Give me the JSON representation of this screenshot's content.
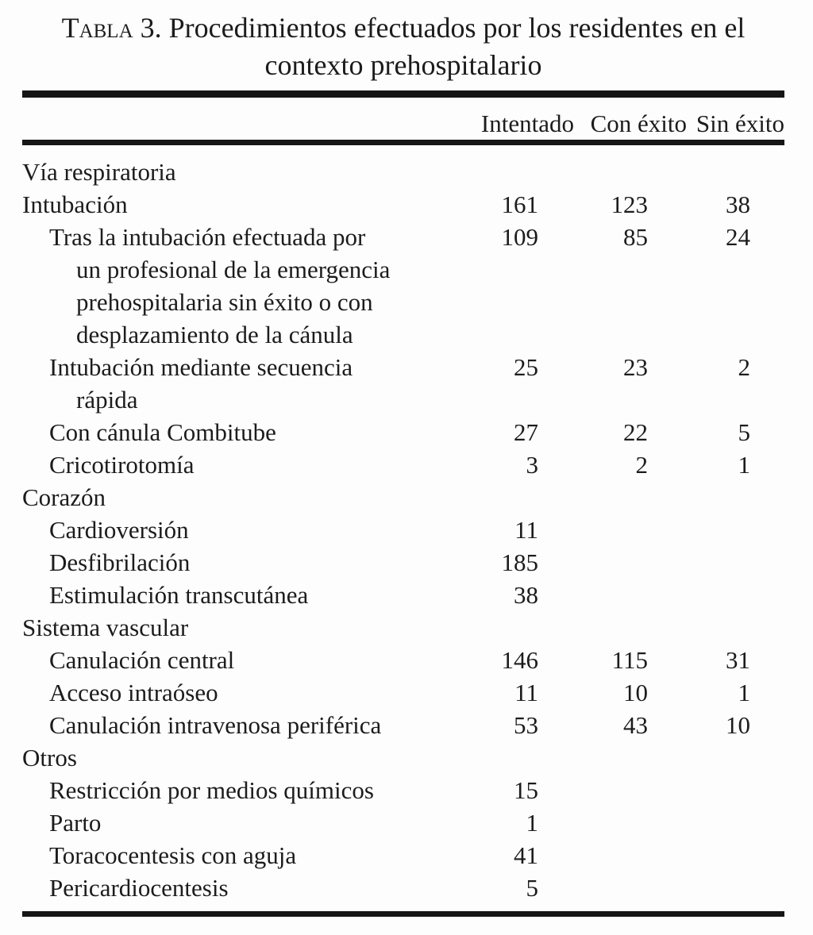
{
  "title": {
    "label_smallcaps": "Tabla",
    "line1_rest": " 3. Procedimientos efectuados por los residentes en el",
    "line2": "contexto prehospitalario"
  },
  "table": {
    "columns": [
      "Intentado",
      "Con éxito",
      "Sin éxito"
    ],
    "rows": [
      {
        "indent": 0,
        "lines": [
          "Vía respiratoria"
        ],
        "intentado": "",
        "con_exito": "",
        "sin_exito": ""
      },
      {
        "indent": 0,
        "lines": [
          "Intubación"
        ],
        "intentado": "161",
        "con_exito": "123",
        "sin_exito": "38"
      },
      {
        "indent": 1,
        "lines": [
          "Tras la intubación efectuada por",
          "un profesional de la emergencia",
          "prehospitalaria sin éxito o con",
          "desplazamiento de la cánula"
        ],
        "intentado": "109",
        "con_exito": "85",
        "sin_exito": "24"
      },
      {
        "indent": 1,
        "lines": [
          "Intubación mediante secuencia",
          "rápida"
        ],
        "intentado": "25",
        "con_exito": "23",
        "sin_exito": "2"
      },
      {
        "indent": 1,
        "lines": [
          "Con cánula Combitube"
        ],
        "intentado": "27",
        "con_exito": "22",
        "sin_exito": "5"
      },
      {
        "indent": 1,
        "lines": [
          "Cricotirotomía"
        ],
        "intentado": "3",
        "con_exito": "2",
        "sin_exito": "1"
      },
      {
        "indent": 0,
        "lines": [
          "Corazón"
        ],
        "intentado": "",
        "con_exito": "",
        "sin_exito": ""
      },
      {
        "indent": 1,
        "lines": [
          "Cardioversión"
        ],
        "intentado": "11",
        "con_exito": "",
        "sin_exito": ""
      },
      {
        "indent": 1,
        "lines": [
          "Desfibrilación"
        ],
        "intentado": "185",
        "con_exito": "",
        "sin_exito": ""
      },
      {
        "indent": 1,
        "lines": [
          "Estimulación transcutánea"
        ],
        "intentado": "38",
        "con_exito": "",
        "sin_exito": ""
      },
      {
        "indent": 0,
        "lines": [
          "Sistema vascular"
        ],
        "intentado": "",
        "con_exito": "",
        "sin_exito": ""
      },
      {
        "indent": 1,
        "lines": [
          "Canulación central"
        ],
        "intentado": "146",
        "con_exito": "115",
        "sin_exito": "31"
      },
      {
        "indent": 1,
        "lines": [
          "Acceso intraóseo"
        ],
        "intentado": "11",
        "con_exito": "10",
        "sin_exito": "1"
      },
      {
        "indent": 1,
        "lines": [
          "Canulación intravenosa periférica"
        ],
        "intentado": "53",
        "con_exito": "43",
        "sin_exito": "10"
      },
      {
        "indent": 0,
        "lines": [
          "Otros"
        ],
        "intentado": "",
        "con_exito": "",
        "sin_exito": ""
      },
      {
        "indent": 1,
        "lines": [
          "Restricción por medios químicos"
        ],
        "intentado": "15",
        "con_exito": "",
        "sin_exito": ""
      },
      {
        "indent": 1,
        "lines": [
          "Parto"
        ],
        "intentado": "1",
        "con_exito": "",
        "sin_exito": ""
      },
      {
        "indent": 1,
        "lines": [
          "Toracocentesis con aguja"
        ],
        "intentado": "41",
        "con_exito": "",
        "sin_exito": ""
      },
      {
        "indent": 1,
        "lines": [
          "Pericardiocentesis"
        ],
        "intentado": "5",
        "con_exito": "",
        "sin_exito": ""
      }
    ]
  },
  "colors": {
    "background": "#fdfdfd",
    "text": "#1c1c1c",
    "rule": "#161616"
  }
}
